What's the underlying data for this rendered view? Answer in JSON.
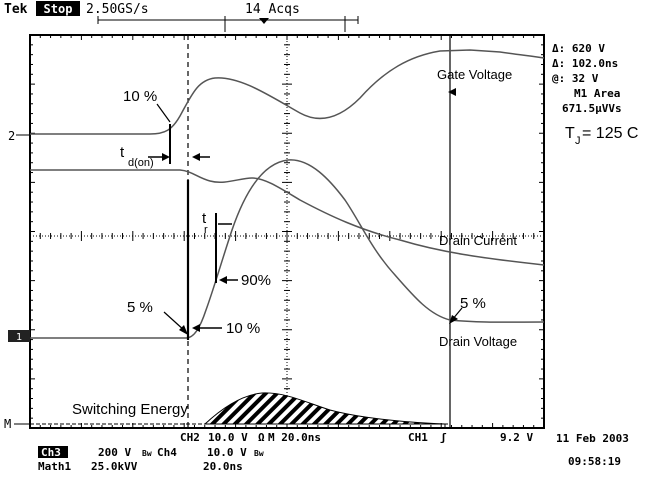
{
  "header": {
    "brand": "Tek",
    "run_state": "Stop",
    "sample_rate": "2.50GS/s",
    "acquisitions": "14 Acqs"
  },
  "readouts": {
    "delta_v": "Δ: 620 V",
    "delta_t": "Δ: 102.0ns",
    "at_v": "@: 32 V",
    "area_label": "M1 Area",
    "area_value": "671.5μVVs",
    "tj_base": "T",
    "tj_sub": "J",
    "tj_rest": " = 125 C"
  },
  "markers": {
    "ch2": "2",
    "ch1": "1",
    "math": "M"
  },
  "annotations": {
    "gate_voltage": "Gate Voltage",
    "drain_current": "Drain Current",
    "drain_voltage": "Drain Voltage",
    "switching_energy": "Switching Energy",
    "pct10_top": "10 %",
    "td_on_base": "t",
    "td_on_sub": "d(on)",
    "tr_base": "t",
    "tr_sub": "r",
    "pct90": "90%",
    "pct5_left": "5 %",
    "pct10_bottom": "10 %",
    "pct5_right": "5 %"
  },
  "footer": {
    "ch2_scale": "CH2",
    "ch2_volts": "10.0 V",
    "ch2_sep": "Ω",
    "timebase": "M 20.0ns",
    "trig_source": "CH1",
    "trig_slope": "ʃ",
    "trig_level": "9.2 V",
    "ch3_label": "Ch3",
    "ch3_volts": "200 V",
    "ch3_bw": "Bw",
    "ch4_label": "Ch4",
    "ch4_volts": "10.0 V",
    "ch4_bw": "Bw",
    "math_label": "Math1",
    "math_scale": "25.0kVV",
    "math_time": "20.0ns",
    "date": "11 Feb 2003",
    "time": "09:58:19"
  },
  "colors": {
    "trace": "#555555",
    "grid": "#000000",
    "ink": "#000000"
  }
}
